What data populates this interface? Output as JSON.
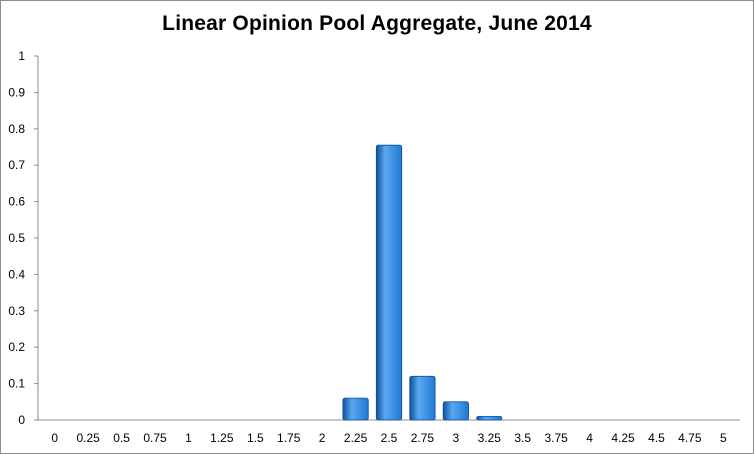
{
  "chart_data": {
    "type": "bar",
    "title": "Linear Opinion Pool Aggregate, June 2014",
    "xlabel": "",
    "ylabel": "",
    "categories": [
      "0",
      "0.25",
      "0.5",
      "0.75",
      "1",
      "1.25",
      "1.5",
      "1.75",
      "2",
      "2.25",
      "2.5",
      "2.75",
      "3",
      "3.25",
      "3.5",
      "3.75",
      "4",
      "4.25",
      "4.5",
      "4.75",
      "5"
    ],
    "values": [
      0,
      0,
      0,
      0,
      0,
      0,
      0,
      0,
      0,
      0.06,
      0.755,
      0.12,
      0.05,
      0.01,
      0,
      0,
      0,
      0,
      0,
      0,
      0
    ],
    "ylim": [
      0,
      1
    ],
    "yticks": [
      "0",
      "0.1",
      "0.2",
      "0.3",
      "0.4",
      "0.5",
      "0.6",
      "0.7",
      "0.8",
      "0.9",
      "1"
    ],
    "grid": false,
    "legend": "none",
    "colors": {
      "bar_fill": "#1f78d4",
      "bar_light": "#5aa9f0",
      "bar_dark": "#0d4f9a",
      "axis": "#8c8c8c"
    }
  }
}
